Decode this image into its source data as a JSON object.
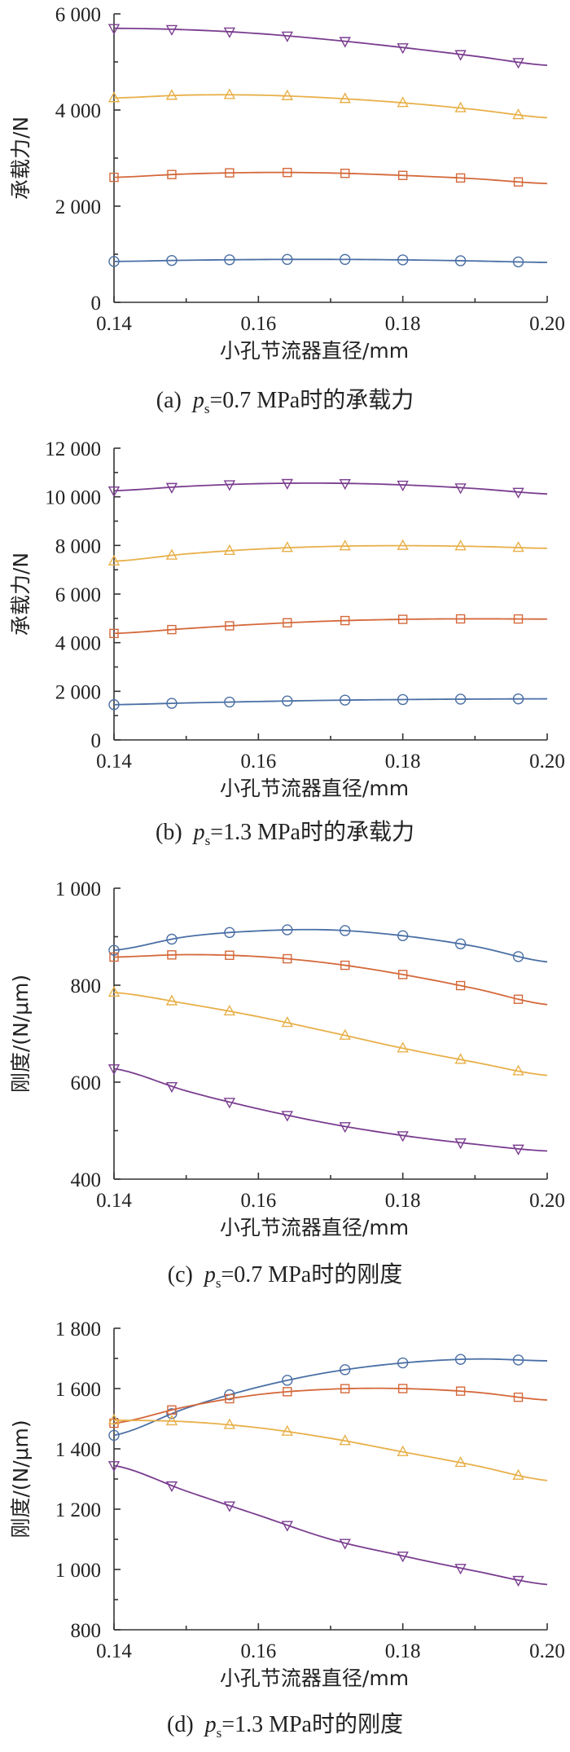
{
  "colors": {
    "series_blue": "#4a6fa5",
    "series_orange": "#d4683a",
    "series_yellow": "#e8b04a",
    "series_purple": "#7a3d8f"
  },
  "panels": [
    {
      "caption_label": "(a)",
      "caption_var": "p",
      "caption_sub": "s",
      "caption_rest": "=0.7 MPa时的承载力"
    },
    {
      "caption_label": "(b)",
      "caption_var": "p",
      "caption_sub": "s",
      "caption_rest": "=1.3 MPa时的承载力"
    },
    {
      "caption_label": "(c)",
      "caption_var": "p",
      "caption_sub": "s",
      "caption_rest": "=0.7 MPa时的刚度"
    },
    {
      "caption_label": "(d)",
      "caption_var": "p",
      "caption_sub": "s",
      "caption_rest": "=1.3 MPa时的刚度"
    }
  ],
  "chart_data": [
    {
      "type": "line",
      "title": "",
      "xlabel": "小孔节流器直径/mm",
      "ylabel": "承载力/N",
      "xlim": [
        0.14,
        0.2
      ],
      "ylim": [
        0,
        6000
      ],
      "x_ticks": [
        "0.14",
        "0.16",
        "0.18",
        "0.20"
      ],
      "y_ticks": [
        "0",
        "2 000",
        "4 000",
        "6 000"
      ],
      "grid": false,
      "markers_x": [
        0.14,
        0.148,
        0.156,
        0.164,
        0.172,
        0.18,
        0.188,
        0.196
      ],
      "series": [
        {
          "marker": "circle",
          "color": "#4a6fa5",
          "curve": [
            [
              0.14,
              850
            ],
            [
              0.15,
              875
            ],
            [
              0.16,
              890
            ],
            [
              0.17,
              893
            ],
            [
              0.18,
              883
            ],
            [
              0.19,
              860
            ],
            [
              0.2,
              830
            ]
          ]
        },
        {
          "marker": "square",
          "color": "#d4683a",
          "curve": [
            [
              0.14,
              2600
            ],
            [
              0.15,
              2670
            ],
            [
              0.16,
              2700
            ],
            [
              0.17,
              2690
            ],
            [
              0.18,
              2640
            ],
            [
              0.19,
              2570
            ],
            [
              0.2,
              2470
            ]
          ]
        },
        {
          "marker": "triangle-up",
          "color": "#e8b04a",
          "curve": [
            [
              0.14,
              4250
            ],
            [
              0.15,
              4310
            ],
            [
              0.16,
              4310
            ],
            [
              0.17,
              4250
            ],
            [
              0.18,
              4150
            ],
            [
              0.19,
              4010
            ],
            [
              0.2,
              3840
            ]
          ]
        },
        {
          "marker": "triangle-down",
          "color": "#7a3d8f",
          "curve": [
            [
              0.14,
              5700
            ],
            [
              0.15,
              5670
            ],
            [
              0.16,
              5590
            ],
            [
              0.17,
              5460
            ],
            [
              0.18,
              5300
            ],
            [
              0.19,
              5120
            ],
            [
              0.2,
              4930
            ]
          ]
        }
      ]
    },
    {
      "type": "line",
      "title": "",
      "xlabel": "小孔节流器直径/mm",
      "ylabel": "承载力/N",
      "xlim": [
        0.14,
        0.2
      ],
      "ylim": [
        0,
        12000
      ],
      "x_ticks": [
        "0.14",
        "0.16",
        "0.18",
        "0.20"
      ],
      "y_ticks": [
        "0",
        "2 000",
        "4 000",
        "6 000",
        "8 000",
        "10 000",
        "12 000"
      ],
      "grid": false,
      "markers_x": [
        0.14,
        0.148,
        0.156,
        0.164,
        0.172,
        0.18,
        0.188,
        0.196
      ],
      "series": [
        {
          "marker": "circle",
          "color": "#4a6fa5",
          "curve": [
            [
              0.14,
              1450
            ],
            [
              0.15,
              1520
            ],
            [
              0.16,
              1580
            ],
            [
              0.17,
              1630
            ],
            [
              0.18,
              1660
            ],
            [
              0.19,
              1680
            ],
            [
              0.2,
              1690
            ]
          ]
        },
        {
          "marker": "square",
          "color": "#d4683a",
          "curve": [
            [
              0.14,
              4380
            ],
            [
              0.15,
              4580
            ],
            [
              0.16,
              4760
            ],
            [
              0.17,
              4890
            ],
            [
              0.18,
              4960
            ],
            [
              0.19,
              4980
            ],
            [
              0.2,
              4970
            ]
          ]
        },
        {
          "marker": "triangle-up",
          "color": "#e8b04a",
          "curve": [
            [
              0.14,
              7350
            ],
            [
              0.15,
              7650
            ],
            [
              0.16,
              7850
            ],
            [
              0.17,
              7960
            ],
            [
              0.18,
              7990
            ],
            [
              0.19,
              7960
            ],
            [
              0.2,
              7880
            ]
          ]
        },
        {
          "marker": "triangle-down",
          "color": "#7a3d8f",
          "curve": [
            [
              0.14,
              10250
            ],
            [
              0.15,
              10430
            ],
            [
              0.16,
              10540
            ],
            [
              0.17,
              10560
            ],
            [
              0.18,
              10490
            ],
            [
              0.19,
              10340
            ],
            [
              0.2,
              10120
            ]
          ]
        }
      ]
    },
    {
      "type": "line",
      "title": "",
      "xlabel": "小孔节流器直径/mm",
      "ylabel": "刚度/(N/μm)",
      "xlim": [
        0.14,
        0.2
      ],
      "ylim": [
        400,
        1000
      ],
      "x_ticks": [
        "0.14",
        "0.16",
        "0.18",
        "0.20"
      ],
      "y_ticks": [
        "400",
        "600",
        "800",
        "1 000"
      ],
      "grid": false,
      "markers_x": [
        0.14,
        0.148,
        0.156,
        0.164,
        0.172,
        0.18,
        0.188,
        0.196
      ],
      "series": [
        {
          "marker": "circle",
          "color": "#4a6fa5",
          "curve": [
            [
              0.14,
              872
            ],
            [
              0.15,
              900
            ],
            [
              0.16,
              912
            ],
            [
              0.17,
              914
            ],
            [
              0.18,
              902
            ],
            [
              0.19,
              880
            ],
            [
              0.2,
              848
            ]
          ]
        },
        {
          "marker": "square",
          "color": "#d4683a",
          "curve": [
            [
              0.14,
              858
            ],
            [
              0.15,
              863
            ],
            [
              0.16,
              859
            ],
            [
              0.17,
              845
            ],
            [
              0.18,
              822
            ],
            [
              0.19,
              793
            ],
            [
              0.2,
              760
            ]
          ]
        },
        {
          "marker": "triangle-up",
          "color": "#e8b04a",
          "curve": [
            [
              0.14,
              785
            ],
            [
              0.15,
              762
            ],
            [
              0.16,
              735
            ],
            [
              0.17,
              703
            ],
            [
              0.18,
              670
            ],
            [
              0.19,
              641
            ],
            [
              0.2,
              614
            ]
          ]
        },
        {
          "marker": "triangle-down",
          "color": "#7a3d8f",
          "curve": [
            [
              0.14,
              628
            ],
            [
              0.15,
              582
            ],
            [
              0.16,
              545
            ],
            [
              0.17,
              514
            ],
            [
              0.18,
              490
            ],
            [
              0.19,
              472
            ],
            [
              0.2,
              458
            ]
          ]
        }
      ]
    },
    {
      "type": "line",
      "title": "",
      "xlabel": "小孔节流器直径/mm",
      "ylabel": "刚度/(N/μm)",
      "xlim": [
        0.14,
        0.2
      ],
      "ylim": [
        800,
        1800
      ],
      "x_ticks": [
        "0.14",
        "0.16",
        "0.18",
        "0.20"
      ],
      "y_ticks": [
        "800",
        "1 000",
        "1 200",
        "1 400",
        "1 600",
        "1 800"
      ],
      "grid": false,
      "markers_x": [
        0.14,
        0.148,
        0.156,
        0.164,
        0.172,
        0.18,
        0.188,
        0.196
      ],
      "series": [
        {
          "marker": "circle",
          "color": "#4a6fa5",
          "curve": [
            [
              0.14,
              1445
            ],
            [
              0.15,
              1535
            ],
            [
              0.16,
              1605
            ],
            [
              0.17,
              1655
            ],
            [
              0.18,
              1685
            ],
            [
              0.19,
              1698
            ],
            [
              0.2,
              1692
            ]
          ]
        },
        {
          "marker": "square",
          "color": "#d4683a",
          "curve": [
            [
              0.14,
              1485
            ],
            [
              0.15,
              1540
            ],
            [
              0.16,
              1580
            ],
            [
              0.17,
              1598
            ],
            [
              0.18,
              1600
            ],
            [
              0.19,
              1588
            ],
            [
              0.2,
              1562
            ]
          ]
        },
        {
          "marker": "triangle-up",
          "color": "#e8b04a",
          "curve": [
            [
              0.14,
              1495
            ],
            [
              0.15,
              1490
            ],
            [
              0.16,
              1470
            ],
            [
              0.17,
              1435
            ],
            [
              0.18,
              1390
            ],
            [
              0.19,
              1345
            ],
            [
              0.2,
              1295
            ]
          ]
        },
        {
          "marker": "triangle-down",
          "color": "#7a3d8f",
          "curve": [
            [
              0.14,
              1345
            ],
            [
              0.15,
              1260
            ],
            [
              0.16,
              1180
            ],
            [
              0.17,
              1100
            ],
            [
              0.18,
              1045
            ],
            [
              0.19,
              995
            ],
            [
              0.2,
              950
            ]
          ]
        }
      ]
    }
  ]
}
